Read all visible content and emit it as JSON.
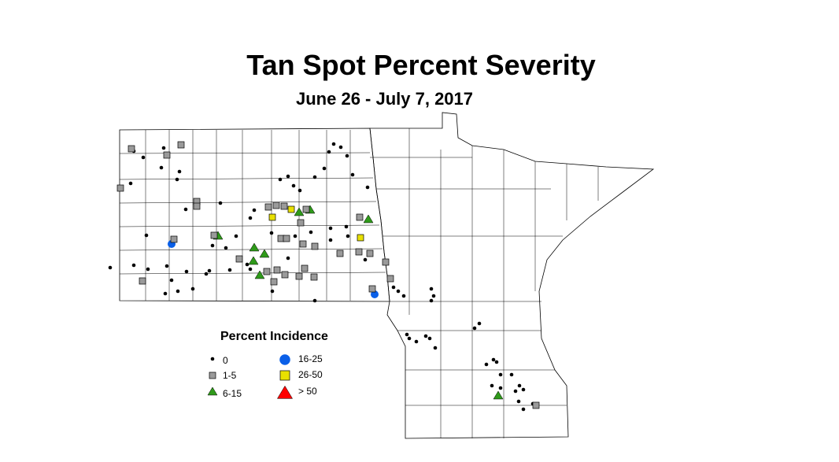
{
  "title": "Tan Spot Percent Severity",
  "subtitle": "June 26 - July 7, 2017",
  "legend": {
    "title": "Percent Incidence",
    "items": [
      {
        "label": "0",
        "symbol": "small-dot",
        "color": "#000000"
      },
      {
        "label": "1-5",
        "symbol": "square",
        "color": "#9a9a9a"
      },
      {
        "label": "6-15",
        "symbol": "triangle",
        "color": "#2f9a1a"
      },
      {
        "label": "16-25",
        "symbol": "circle",
        "color": "#0a5fe8"
      },
      {
        "label": "26-50",
        "symbol": "square",
        "color": "#e8e000"
      },
      {
        "label": "> 50",
        "symbol": "triangle",
        "color": "#ff0000"
      }
    ]
  }
}
